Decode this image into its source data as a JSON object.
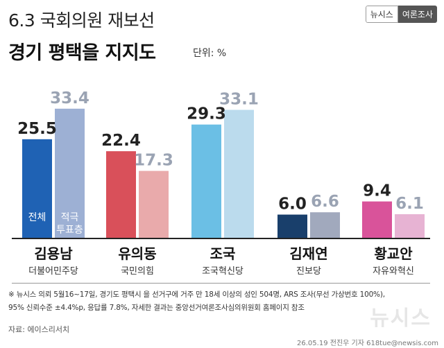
{
  "header": {
    "title_line1": "6.3 국회의원 재보선",
    "title_line2": "경기 평택을 지지도",
    "unit_label": "단위: %",
    "brand_left": "뉴시스",
    "brand_right": "여론조사"
  },
  "legend": {
    "overall": "전체",
    "active_line1": "적극",
    "active_line2": "투표층"
  },
  "chart_data": {
    "type": "bar",
    "title": "경기 평택을 지지도",
    "unit": "%",
    "categories": [
      "김용남",
      "유의동",
      "조국",
      "김재연",
      "황교안"
    ],
    "parties": [
      "더불어민주당",
      "국민의힘",
      "조국혁신당",
      "진보당",
      "자유와혁신"
    ],
    "series": [
      {
        "name": "전체",
        "values": [
          25.5,
          22.4,
          29.3,
          6.0,
          9.4
        ]
      },
      {
        "name": "적극 투표층",
        "values": [
          33.4,
          17.3,
          33.1,
          6.6,
          6.1
        ]
      }
    ],
    "value_labels": [
      [
        "25.5",
        "22.4",
        "29.3",
        "6.0",
        "9.4"
      ],
      [
        "33.4",
        "17.3",
        "33.1",
        "6.6",
        "6.1"
      ]
    ],
    "colors": {
      "overall": [
        "#1f62b4",
        "#d9505a",
        "#6bbfe5",
        "#193f6b",
        "#d9539a"
      ],
      "active": [
        "#9db0d4",
        "#e9aaab",
        "#bbdbed",
        "#a1a9bd",
        "#e7b3d3"
      ],
      "overall_text": [
        "#222222",
        "#222222",
        "#222222",
        "#222222",
        "#222222"
      ],
      "active_text": [
        "#9aa3b3",
        "#9aa3b3",
        "#9aa3b3",
        "#9aa3b3",
        "#9aa3b3"
      ]
    },
    "ylim": [
      0,
      40
    ]
  },
  "footer": {
    "note_line1": "※ 뉴시스 의뢰 5월16~17일, 경기도 평택시 을 선거구에 거주 만 18세 이상의 성인 504명, ARS 조사(무선 가상번호 100%),",
    "note_line2": "95% 신뢰수준 ±4.4%p, 응답률 7.8%, 자세한 결과는 중앙선거여론조사심의위원회 홈페이지 참조",
    "source": "자료: 에이스리서치",
    "credit": "26.05.19 전진우 기자 618tue@newsis.com",
    "watermark": "뉴시스"
  }
}
